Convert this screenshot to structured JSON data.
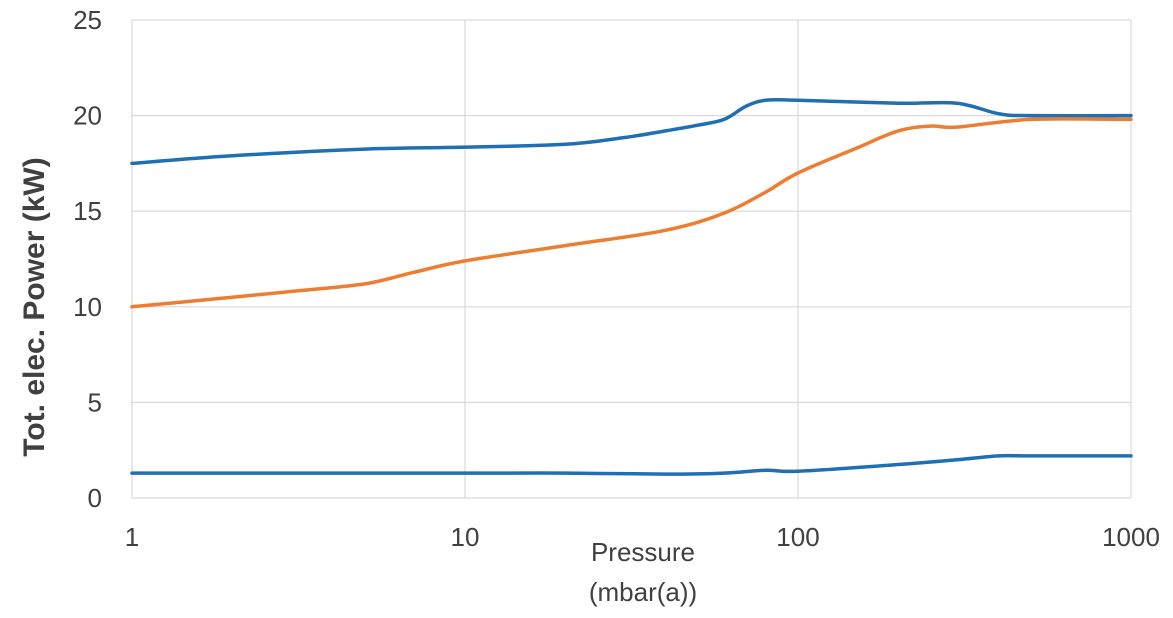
{
  "chart_data": {
    "type": "line",
    "title": "",
    "xlabel_lines": [
      "Pressure",
      "(mbar(a))"
    ],
    "ylabel": "Tot. elec. Power (kW)",
    "x_scale": "log",
    "xlim": [
      1,
      1000
    ],
    "ylim": [
      0,
      25
    ],
    "x_ticks": [
      1,
      10,
      100,
      1000
    ],
    "x_tick_labels": [
      "1",
      "10",
      "100",
      "1000"
    ],
    "y_ticks": [
      0,
      5,
      10,
      15,
      20,
      25
    ],
    "y_tick_labels": [
      "0",
      "5",
      "10",
      "15",
      "20",
      "25"
    ],
    "grid": true,
    "legend": "none",
    "series": [
      {
        "color": "#1f6fb4",
        "points": [
          [
            1,
            17.5
          ],
          [
            2,
            17.9
          ],
          [
            5,
            18.25
          ],
          [
            10,
            18.35
          ],
          [
            20,
            18.5
          ],
          [
            30,
            18.85
          ],
          [
            40,
            19.2
          ],
          [
            50,
            19.5
          ],
          [
            60,
            19.8
          ],
          [
            70,
            20.5
          ],
          [
            80,
            20.8
          ],
          [
            100,
            20.8
          ],
          [
            200,
            20.65
          ],
          [
            300,
            20.65
          ],
          [
            400,
            20.1
          ],
          [
            500,
            20.0
          ],
          [
            1000,
            20.0
          ]
        ]
      },
      {
        "color": "#ed7d31",
        "points": [
          [
            1,
            10.0
          ],
          [
            2,
            10.5
          ],
          [
            3,
            10.8
          ],
          [
            5,
            11.2
          ],
          [
            7,
            11.8
          ],
          [
            10,
            12.4
          ],
          [
            20,
            13.2
          ],
          [
            40,
            14.0
          ],
          [
            60,
            14.9
          ],
          [
            80,
            16.0
          ],
          [
            100,
            17.0
          ],
          [
            150,
            18.3
          ],
          [
            200,
            19.2
          ],
          [
            250,
            19.45
          ],
          [
            300,
            19.4
          ],
          [
            500,
            19.8
          ],
          [
            1000,
            19.8
          ]
        ]
      },
      {
        "color": "#1f6fb4",
        "points": [
          [
            1,
            1.3
          ],
          [
            10,
            1.3
          ],
          [
            20,
            1.3
          ],
          [
            40,
            1.25
          ],
          [
            60,
            1.3
          ],
          [
            80,
            1.45
          ],
          [
            100,
            1.4
          ],
          [
            200,
            1.75
          ],
          [
            300,
            2.0
          ],
          [
            400,
            2.2
          ],
          [
            500,
            2.2
          ],
          [
            1000,
            2.2
          ]
        ]
      }
    ]
  }
}
